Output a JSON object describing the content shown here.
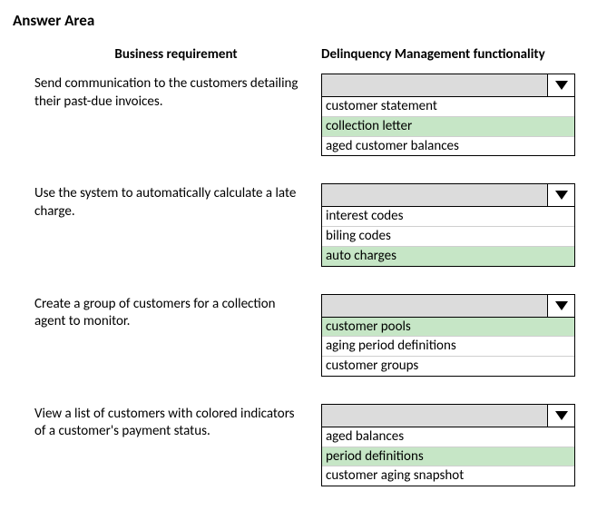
{
  "title": "Answer Area",
  "headers": {
    "left": "Business requirement",
    "right": "Delinquency Management functionality"
  },
  "colors": {
    "dropdown_header_bg": "#dcdcdc",
    "option_highlight_bg": "#c6e6c6",
    "option_bg": "#ffffff",
    "border": "#000000",
    "option_divider": "#cfcfcf"
  },
  "rows": [
    {
      "requirement": "Send communication to the customers detailing their past-due invoices.",
      "options": [
        {
          "label": "customer statement",
          "highlighted": false
        },
        {
          "label": "collection letter",
          "highlighted": true
        },
        {
          "label": "aged customer balances",
          "highlighted": false
        }
      ]
    },
    {
      "requirement": "Use the system to automatically calculate a late charge.",
      "options": [
        {
          "label": "interest codes",
          "highlighted": false
        },
        {
          "label": "biling codes",
          "highlighted": false
        },
        {
          "label": "auto charges",
          "highlighted": true
        }
      ]
    },
    {
      "requirement": "Create a group of customers for a collection agent to monitor.",
      "options": [
        {
          "label": "customer pools",
          "highlighted": true
        },
        {
          "label": "aging period definitions",
          "highlighted": false
        },
        {
          "label": "customer groups",
          "highlighted": false
        }
      ]
    },
    {
      "requirement": "View a list of customers with colored indicators of a customer's payment status.",
      "options": [
        {
          "label": "aged balances",
          "highlighted": false
        },
        {
          "label": "period definitions",
          "highlighted": true
        },
        {
          "label": "customer aging snapshot",
          "highlighted": false
        }
      ]
    }
  ]
}
